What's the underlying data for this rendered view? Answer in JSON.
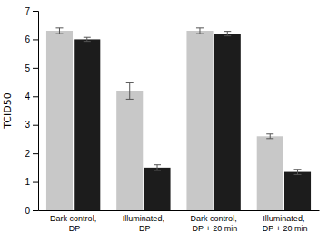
{
  "chart_data": {
    "type": "bar",
    "categories": [
      "Dark control, DP",
      "Illuminated, DP",
      "Dark control, DP + 20 min",
      "Illuminated, DP + 20 min"
    ],
    "series": [
      {
        "color": "#c8c8c8",
        "values": [
          6.3,
          4.2,
          6.3,
          2.6
        ],
        "errors": [
          0.1,
          0.3,
          0.1,
          0.08
        ]
      },
      {
        "color": "#1c1c1c",
        "values": [
          6.0,
          1.5,
          6.2,
          1.35
        ],
        "errors": [
          0.07,
          0.1,
          0.08,
          0.09
        ]
      }
    ],
    "ylabel": "TCID50",
    "ylim": [
      0,
      7
    ],
    "yticks": [
      0,
      1,
      2,
      3,
      4,
      5,
      6,
      7
    ],
    "grid": false
  }
}
